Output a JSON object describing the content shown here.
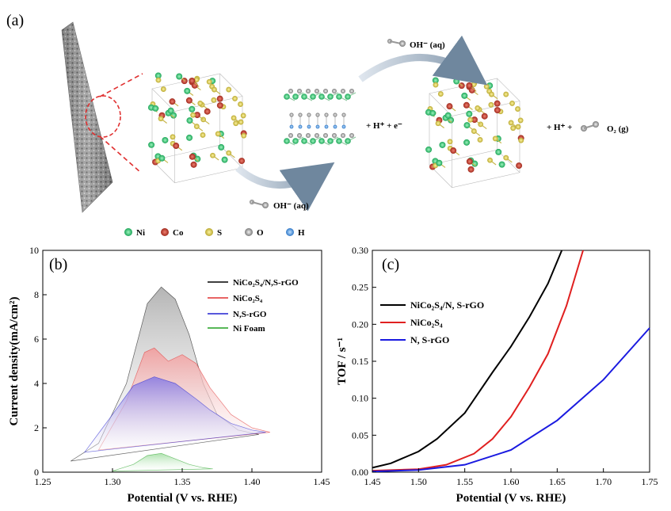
{
  "panel_a": {
    "label": "(a)",
    "oh_top": "OH⁻ (aq)",
    "oh_bottom": "OH⁻ (aq)",
    "step1_products": "+ H⁺ + e⁻",
    "step2_products": "+ H⁺ +",
    "o2_label": "O₂ (g)",
    "legend": [
      {
        "label": "Ni",
        "color": "#2ecc71"
      },
      {
        "label": "Co",
        "color": "#c0392b"
      },
      {
        "label": "S",
        "color": "#e0d050"
      },
      {
        "label": "O",
        "color": "#9a9a9a"
      },
      {
        "label": "H",
        "color": "#4a90e2"
      }
    ]
  },
  "chart_data": [
    {
      "type": "area",
      "panel_label": "(b)",
      "xlabel": "Potential (V vs. RHE)",
      "ylabel": "Current density(mA/cm²)",
      "xlim": [
        1.25,
        1.45
      ],
      "ylim": [
        0,
        10
      ],
      "xticks": [
        "1.25",
        "1.30",
        "1.35",
        "1.40",
        "1.45"
      ],
      "yticks": [
        "0",
        "2",
        "4",
        "6",
        "8",
        "10"
      ],
      "legend": "top-right",
      "series": [
        {
          "name": "NiCo₂S₄/N,S-rGO",
          "color": "#000000",
          "fill": "#b0b0b0",
          "points": [
            [
              1.27,
              0.5
            ],
            [
              1.29,
              1.3
            ],
            [
              1.31,
              4.0
            ],
            [
              1.325,
              7.6
            ],
            [
              1.335,
              8.35
            ],
            [
              1.345,
              7.8
            ],
            [
              1.355,
              6.2
            ],
            [
              1.365,
              4.0
            ],
            [
              1.375,
              2.6
            ],
            [
              1.39,
              1.9
            ],
            [
              1.405,
              1.7
            ]
          ]
        },
        {
          "name": "NiCo₂S₄",
          "color": "#e03030",
          "fill": "#f0a0a0",
          "points": [
            [
              1.29,
              1.0
            ],
            [
              1.31,
              3.2
            ],
            [
              1.323,
              5.4
            ],
            [
              1.33,
              5.6
            ],
            [
              1.34,
              5.0
            ],
            [
              1.35,
              5.3
            ],
            [
              1.36,
              4.9
            ],
            [
              1.37,
              3.8
            ],
            [
              1.385,
              2.6
            ],
            [
              1.4,
              2.0
            ],
            [
              1.413,
              1.8
            ]
          ]
        },
        {
          "name": "N,S-rGO",
          "color": "#2020d0",
          "fill": "#9080e0",
          "points": [
            [
              1.28,
              0.9
            ],
            [
              1.3,
              2.6
            ],
            [
              1.315,
              3.9
            ],
            [
              1.33,
              4.3
            ],
            [
              1.345,
              4.0
            ],
            [
              1.36,
              3.3
            ],
            [
              1.37,
              2.8
            ],
            [
              1.385,
              2.2
            ],
            [
              1.4,
              1.9
            ],
            [
              1.41,
              1.8
            ]
          ]
        },
        {
          "name": "Ni Foam",
          "color": "#20a020",
          "fill": "#a8e0a8",
          "points": [
            [
              1.3,
              0.05
            ],
            [
              1.315,
              0.35
            ],
            [
              1.325,
              0.75
            ],
            [
              1.335,
              0.85
            ],
            [
              1.345,
              0.6
            ],
            [
              1.355,
              0.35
            ],
            [
              1.365,
              0.2
            ],
            [
              1.372,
              0.15
            ]
          ]
        }
      ]
    },
    {
      "type": "line",
      "panel_label": "(c)",
      "xlabel": "Potential (V vs. RHE)",
      "ylabel": "TOF / s⁻¹",
      "xlim": [
        1.45,
        1.75
      ],
      "ylim": [
        0,
        0.3
      ],
      "xticks": [
        "1.45",
        "1.50",
        "1.55",
        "1.60",
        "1.65",
        "1.70",
        "1.75"
      ],
      "yticks": [
        "0.00",
        "0.05",
        "0.10",
        "0.15",
        "0.20",
        "0.25",
        "0.30"
      ],
      "legend": "top-left",
      "series": [
        {
          "name": "NiCo₂S₄/N, S-rGO",
          "color": "#000000",
          "points": [
            [
              1.45,
              0.006
            ],
            [
              1.47,
              0.012
            ],
            [
              1.5,
              0.028
            ],
            [
              1.52,
              0.045
            ],
            [
              1.55,
              0.08
            ],
            [
              1.58,
              0.135
            ],
            [
              1.6,
              0.17
            ],
            [
              1.62,
              0.21
            ],
            [
              1.64,
              0.255
            ],
            [
              1.655,
              0.3
            ]
          ]
        },
        {
          "name": "NiCo₂S₄",
          "color": "#e02020",
          "points": [
            [
              1.45,
              0.002
            ],
            [
              1.5,
              0.004
            ],
            [
              1.53,
              0.01
            ],
            [
              1.56,
              0.025
            ],
            [
              1.58,
              0.045
            ],
            [
              1.6,
              0.075
            ],
            [
              1.62,
              0.115
            ],
            [
              1.64,
              0.16
            ],
            [
              1.66,
              0.225
            ],
            [
              1.678,
              0.3
            ]
          ]
        },
        {
          "name": "N, S-rGO",
          "color": "#1a1ae0",
          "points": [
            [
              1.45,
              0.001
            ],
            [
              1.5,
              0.003
            ],
            [
              1.55,
              0.01
            ],
            [
              1.6,
              0.03
            ],
            [
              1.65,
              0.07
            ],
            [
              1.7,
              0.125
            ],
            [
              1.75,
              0.195
            ]
          ]
        }
      ]
    }
  ]
}
